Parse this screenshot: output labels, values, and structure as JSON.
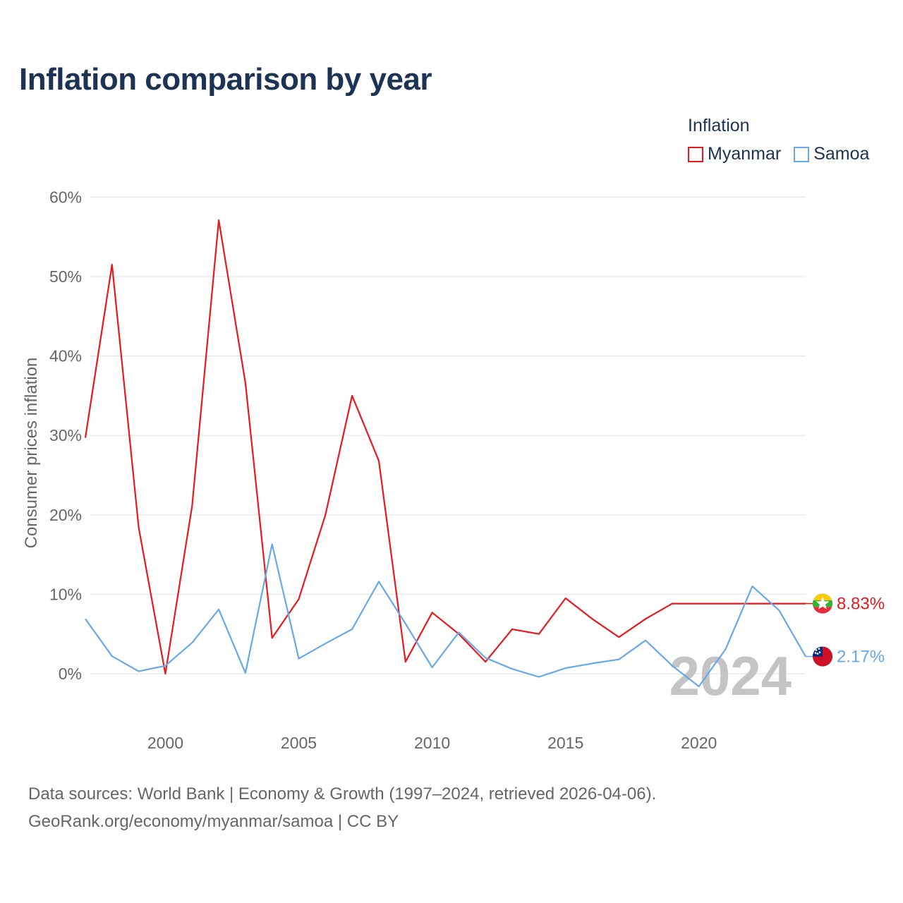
{
  "header": {
    "title": "Inflation comparison by year"
  },
  "legend": {
    "title": "Inflation",
    "items": [
      {
        "label": "Myanmar",
        "color": "#e8191e"
      },
      {
        "label": "Samoa",
        "color": "#67a9e6"
      }
    ]
  },
  "footer": {
    "line1": "Data sources: World Bank | Economy & Growth (1997–2024, retrieved 2026-04-06).",
    "line2": "GeoRank.org/economy/myanmar/samoa | CC BY"
  },
  "chart_data": {
    "type": "line",
    "title": "Inflation comparison by year",
    "ylabel": "Consumer prices inflation",
    "xlabel": "",
    "xlim": [
      1997,
      2024
    ],
    "ylim": [
      -5,
      60
    ],
    "y_ticks": [
      0,
      10,
      20,
      30,
      40,
      50,
      60
    ],
    "y_tick_labels": [
      "0%",
      "10%",
      "20%",
      "30%",
      "40%",
      "50%",
      "60%"
    ],
    "x_ticks": [
      2000,
      2005,
      2010,
      2015,
      2020
    ],
    "x_tick_labels": [
      "2000",
      "2005",
      "2010",
      "2015",
      "2020"
    ],
    "year_watermark": "2024",
    "series": [
      {
        "name": "Myanmar",
        "color": "#e8191e",
        "end_label": "8.83%",
        "flag": "myanmar-flag",
        "points": [
          [
            1997,
            29.7
          ],
          [
            1998,
            51.5
          ],
          [
            1999,
            18.4
          ],
          [
            2000,
            0.0
          ],
          [
            2001,
            21.1
          ],
          [
            2002,
            57.1
          ],
          [
            2003,
            36.6
          ],
          [
            2004,
            4.5
          ],
          [
            2005,
            9.4
          ],
          [
            2006,
            20.0
          ],
          [
            2007,
            35.0
          ],
          [
            2008,
            26.8
          ],
          [
            2009,
            1.5
          ],
          [
            2010,
            7.7
          ],
          [
            2011,
            5.0
          ],
          [
            2012,
            1.5
          ],
          [
            2013,
            5.6
          ],
          [
            2014,
            5.0
          ],
          [
            2015,
            9.5
          ],
          [
            2016,
            6.9
          ],
          [
            2017,
            4.6
          ],
          [
            2018,
            6.9
          ],
          [
            2019,
            8.83
          ],
          [
            2024,
            8.83
          ]
        ]
      },
      {
        "name": "Samoa",
        "color": "#67a9e6",
        "end_label": "2.17%",
        "flag": "samoa-flag",
        "points": [
          [
            1997,
            6.9
          ],
          [
            1998,
            2.2
          ],
          [
            1999,
            0.3
          ],
          [
            2000,
            1.0
          ],
          [
            2001,
            3.9
          ],
          [
            2002,
            8.1
          ],
          [
            2003,
            0.1
          ],
          [
            2004,
            16.3
          ],
          [
            2005,
            1.9
          ],
          [
            2006,
            3.8
          ],
          [
            2007,
            5.6
          ],
          [
            2008,
            11.6
          ],
          [
            2009,
            6.3
          ],
          [
            2010,
            0.8
          ],
          [
            2011,
            5.2
          ],
          [
            2012,
            2.0
          ],
          [
            2013,
            0.6
          ],
          [
            2014,
            -0.4
          ],
          [
            2015,
            0.7
          ],
          [
            2016,
            1.3
          ],
          [
            2017,
            1.8
          ],
          [
            2018,
            4.2
          ],
          [
            2019,
            1.0
          ],
          [
            2020,
            -1.6
          ],
          [
            2021,
            3.1
          ],
          [
            2022,
            11.0
          ],
          [
            2023,
            8.0
          ],
          [
            2024,
            2.17
          ]
        ]
      }
    ]
  }
}
